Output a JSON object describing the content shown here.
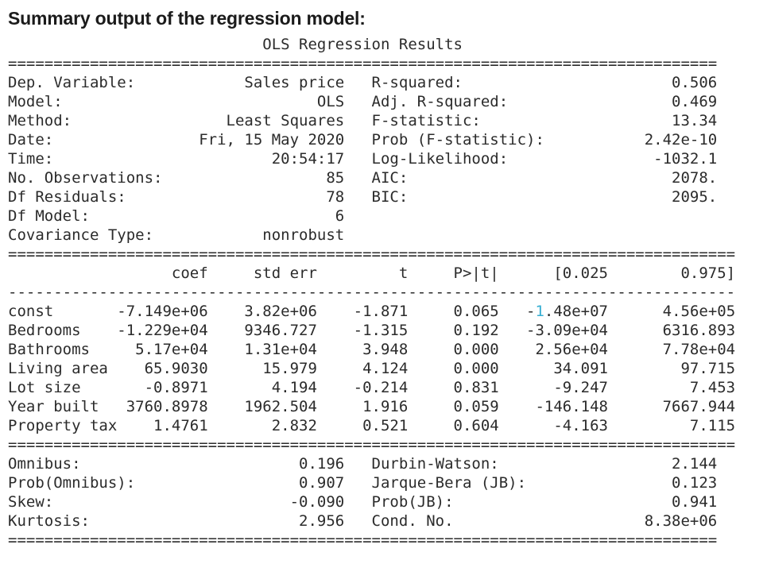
{
  "page_title": "Summary output of the regression model:",
  "report": {
    "title": "OLS Regression Results",
    "info_width": 78,
    "coef_width": 80,
    "left_col_width": 37,
    "gap": 3,
    "info_rows": [
      {
        "ll": "Dep. Variable:",
        "lv": "Sales price",
        "rl": "R-squared:",
        "rv": "0.506"
      },
      {
        "ll": "Model:",
        "lv": "OLS",
        "rl": "Adj. R-squared:",
        "rv": "0.469"
      },
      {
        "ll": "Method:",
        "lv": "Least Squares",
        "rl": "F-statistic:",
        "rv": "13.34"
      },
      {
        "ll": "Date:",
        "lv": "Fri, 15 May 2020",
        "rl": "Prob (F-statistic):",
        "rv": "2.42e-10"
      },
      {
        "ll": "Time:",
        "lv": "20:54:17",
        "rl": "Log-Likelihood:",
        "rv": "-1032.1"
      },
      {
        "ll": "No. Observations:",
        "lv": "85",
        "rl": "AIC:",
        "rv": "2078."
      },
      {
        "ll": "Df Residuals:",
        "lv": "78",
        "rl": "BIC:",
        "rv": "2095."
      },
      {
        "ll": "Df Model:",
        "lv": "6",
        "rl": "",
        "rv": ""
      },
      {
        "ll": "Covariance Type:",
        "lv": "nonrobust",
        "rl": "",
        "rv": ""
      }
    ],
    "coef_table": {
      "headers": [
        "",
        "coef",
        "std err",
        "t",
        "P>|t|",
        "[0.025",
        "0.975]"
      ],
      "col_ends": [
        12,
        22,
        34,
        44,
        54,
        66,
        80
      ],
      "rows": [
        [
          "const",
          "-7.149e+06",
          "3.82e+06",
          "-1.871",
          "0.065",
          "-1.48e+07",
          "4.56e+05"
        ],
        [
          "Bedrooms",
          "-1.229e+04",
          "9346.727",
          "-1.315",
          "0.192",
          "-3.09e+04",
          "6316.893"
        ],
        [
          "Bathrooms",
          "5.17e+04",
          "1.31e+04",
          "3.948",
          "0.000",
          "2.56e+04",
          "7.78e+04"
        ],
        [
          "Living area",
          "65.9030",
          "15.979",
          "4.124",
          "0.000",
          "34.091",
          "97.715"
        ],
        [
          "Lot size",
          "-0.8971",
          "4.194",
          "-0.214",
          "0.831",
          "-9.247",
          "7.453"
        ],
        [
          "Year built",
          "3760.8978",
          "1962.504",
          "1.916",
          "0.059",
          "-146.148",
          "7667.944"
        ],
        [
          "Property tax",
          "1.4761",
          "2.832",
          "0.521",
          "0.604",
          "-4.163",
          "7.115"
        ]
      ],
      "artifact": {
        "row": 0,
        "col": 5,
        "char_index": 1,
        "color": "#35aed2"
      }
    },
    "diag_rows": [
      {
        "ll": "Omnibus:",
        "lv": "0.196",
        "rl": "Durbin-Watson:",
        "rv": "2.144"
      },
      {
        "ll": "Prob(Omnibus):",
        "lv": "0.907",
        "rl": "Jarque-Bera (JB):",
        "rv": "0.123"
      },
      {
        "ll": "Skew:",
        "lv": "-0.090",
        "rl": "Prob(JB):",
        "rv": "0.941"
      },
      {
        "ll": "Kurtosis:",
        "lv": "2.956",
        "rl": "Cond. No.",
        "rv": "8.38e+06"
      }
    ]
  }
}
